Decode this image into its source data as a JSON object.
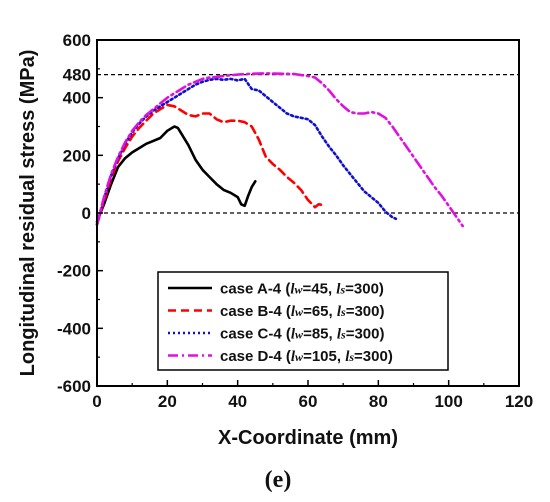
{
  "chart_data": {
    "type": "line",
    "title": "",
    "xlabel": "X-Coordinate (mm)",
    "ylabel": "Longitudinal residual stress (MPa)",
    "xlim": [
      0,
      120
    ],
    "ylim": [
      -600,
      600
    ],
    "x_ticks": [
      "0",
      "20",
      "40",
      "60",
      "80",
      "100",
      "120"
    ],
    "y_ticks": [
      "-600",
      "-400",
      "-200",
      "0",
      "200",
      "400",
      "600"
    ],
    "extra_y_tick": "480",
    "reference_lines": [
      {
        "y": 480,
        "style": "dashed",
        "color": "#000000"
      },
      {
        "y": 0,
        "style": "dashed",
        "color": "#000000"
      }
    ],
    "grid": false,
    "legend_position": "bottom-right",
    "panel_label": "(e)",
    "series": [
      {
        "legend_prefix": "case A-4 (",
        "legend_lw": "w",
        "legend_lw_val": "=45, ",
        "legend_ls": "s",
        "legend_ls_val": "=300)",
        "color": "#000000",
        "dash": "solid",
        "x": [
          0,
          2,
          4,
          6,
          8,
          10,
          12,
          14,
          16,
          18,
          20,
          22,
          23,
          24,
          26,
          28,
          30,
          32,
          34,
          36,
          38,
          40,
          41,
          42,
          43,
          44,
          45
        ],
        "y": [
          -30,
          30,
          100,
          160,
          190,
          210,
          225,
          240,
          250,
          260,
          285,
          300,
          295,
          275,
          235,
          185,
          150,
          125,
          100,
          80,
          70,
          55,
          30,
          25,
          60,
          90,
          110
        ]
      },
      {
        "legend_prefix": "case B-4 (",
        "legend_lw": "w",
        "legend_lw_val": "=65, ",
        "legend_ls": "s",
        "legend_ls_val": "=300)",
        "color": "#ff0000",
        "dash": "8,5",
        "x": [
          0,
          2,
          4,
          6,
          8,
          10,
          12,
          14,
          16,
          18,
          20,
          22,
          24,
          26,
          28,
          30,
          32,
          34,
          36,
          38,
          40,
          42,
          44,
          46,
          48,
          50,
          52,
          54,
          56,
          58,
          60,
          62,
          63,
          64,
          65
        ],
        "y": [
          -40,
          40,
          120,
          180,
          225,
          265,
          295,
          320,
          345,
          360,
          375,
          370,
          355,
          340,
          335,
          345,
          345,
          325,
          315,
          320,
          320,
          315,
          300,
          255,
          195,
          170,
          150,
          125,
          105,
          80,
          45,
          20,
          30,
          28,
          25
        ]
      },
      {
        "legend_prefix": "case C-4 (",
        "legend_lw": "w",
        "legend_lw_val": "=85, ",
        "legend_ls": "s",
        "legend_ls_val": "=300)",
        "color": "#1010cc",
        "dash": "2,3",
        "x": [
          0,
          2,
          4,
          6,
          8,
          10,
          12,
          14,
          16,
          18,
          20,
          22,
          24,
          26,
          28,
          30,
          32,
          34,
          36,
          38,
          40,
          42,
          44,
          46,
          48,
          50,
          52,
          54,
          56,
          58,
          60,
          62,
          64,
          66,
          68,
          70,
          72,
          74,
          76,
          78,
          80,
          82,
          84,
          85
        ],
        "y": [
          -40,
          50,
          130,
          190,
          240,
          280,
          310,
          335,
          355,
          370,
          385,
          400,
          415,
          430,
          445,
          455,
          462,
          465,
          462,
          465,
          460,
          465,
          430,
          425,
          405,
          385,
          365,
          345,
          335,
          330,
          325,
          305,
          265,
          230,
          200,
          165,
          135,
          105,
          75,
          55,
          35,
          5,
          -15,
          -20
        ]
      },
      {
        "legend_prefix": "case D-4 (",
        "legend_lw": "w",
        "legend_lw_val": "=105, ",
        "legend_ls": "s",
        "legend_ls_val": "=300)",
        "color": "#e010e0",
        "dash": "10,4,2,4",
        "x": [
          0,
          2,
          4,
          6,
          8,
          10,
          12,
          14,
          16,
          18,
          20,
          22,
          24,
          26,
          28,
          30,
          32,
          34,
          36,
          38,
          40,
          44,
          48,
          52,
          56,
          60,
          62,
          64,
          66,
          68,
          70,
          72,
          74,
          76,
          78,
          80,
          82,
          84,
          86,
          88,
          90,
          92,
          94,
          96,
          98,
          100,
          102,
          104
        ],
        "y": [
          -40,
          55,
          135,
          195,
          245,
          285,
          315,
          340,
          360,
          380,
          400,
          415,
          430,
          445,
          455,
          465,
          470,
          472,
          475,
          478,
          480,
          483,
          484,
          483,
          482,
          475,
          470,
          450,
          425,
          395,
          370,
          350,
          345,
          345,
          350,
          345,
          330,
          300,
          265,
          230,
          195,
          160,
          125,
          90,
          60,
          25,
          -10,
          -45
        ]
      }
    ]
  }
}
